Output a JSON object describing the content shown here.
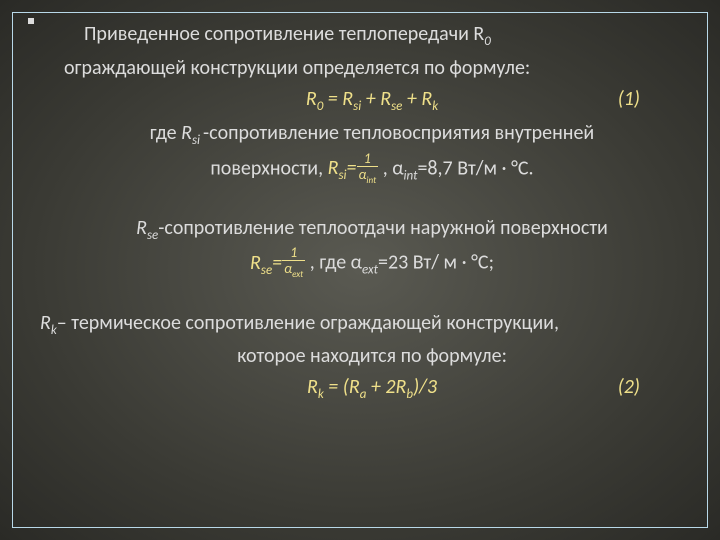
{
  "colors": {
    "text": "#dcdcdc",
    "accent": "#efe08a",
    "border": "#b8d8e8",
    "bg_inner": "#5a5a52",
    "bg_outer": "#2a2a26"
  },
  "text": {
    "intro_1": "Приведенное сопротивление теплопередачи  R",
    "intro_sub0": "0",
    "intro_2": "ограждающей конструкции определяется  по формуле:",
    "formula1_lhs": "R",
    "formula1_sub0_a": "0",
    "formula1_eqpart": " = R",
    "formula1_sub_si": "si",
    "formula1_plus1": " + R",
    "formula1_sub_se": "se",
    "formula1_plus2": " + R",
    "formula1_sub_k": "k",
    "eq1_num": "(1)",
    "where_rsi_1": "где ",
    "where_rsi_R": "R",
    "where_rsi_sub": "si ",
    "where_rsi_2": "-сопротивление тепловосприятия   внутренней",
    "where_rsi_3": "поверхности,  ",
    "rsi_frac_R": "R",
    "rsi_frac_sub": "si",
    "rsi_frac_eq": "=",
    "rsi_frac_num": "1",
    "rsi_frac_den_a": "α",
    "rsi_frac_den_sub": "int",
    "rsi_after": "  ,   α",
    "rsi_after_sub": "int",
    "rsi_after_val": "=8,7 Вт/м · °С.",
    "rse_line": "-сопротивление теплоотдачи наружной поверхности",
    "rse_R": "R",
    "rse_sub": "se",
    "rse_frac_R": "R",
    "rse_frac_sub": "se",
    "rse_frac_eq": "=",
    "rse_frac_num": "1",
    "rse_frac_den_a": "α",
    "rse_frac_den_sub": "ext",
    "rse_after": ",  где α",
    "rse_after_sub": "ext",
    "rse_after_val": "=23 Вт/ м · °С;",
    "rk_R": "R",
    "rk_sub": "k",
    "rk_line1": "– термическое сопротивление ограждающей конструкции,",
    "rk_line2": "которое находится  по формуле:",
    "formula2_R": "R",
    "formula2_sub_k": "k",
    "formula2_eq": " = (R",
    "formula2_sub_a": "a",
    "formula2_mid": " + 2R",
    "formula2_sub_b": "b",
    "formula2_end": ")/3",
    "eq2_num": "(2)"
  }
}
